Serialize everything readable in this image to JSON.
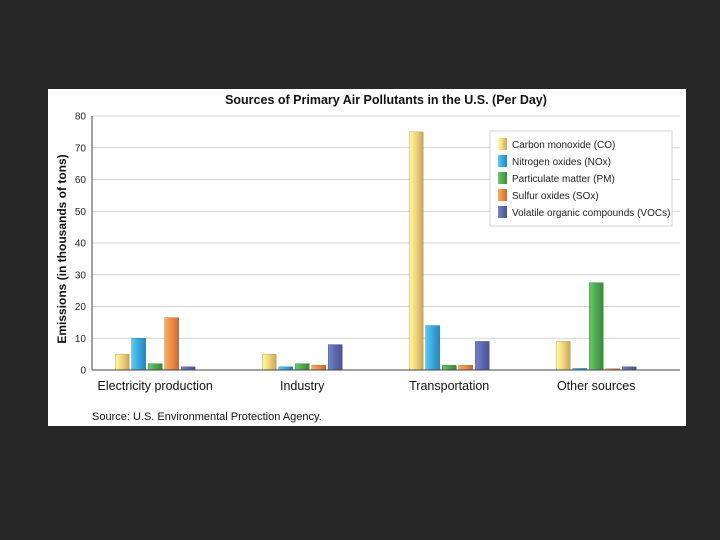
{
  "chart_data": {
    "type": "bar",
    "title": "Sources of Primary Air Pollutants in the U.S. (Per Day)",
    "ylabel": "Emissions (in thousands of tons)",
    "xlabel": "",
    "ylim": [
      0,
      80
    ],
    "yticks": [
      0,
      10,
      20,
      30,
      40,
      50,
      60,
      70,
      80
    ],
    "categories": [
      "Electricity production",
      "Industry",
      "Transportation",
      "Other sources"
    ],
    "series": [
      {
        "name": "Carbon monoxide (CO)",
        "color": "#f3d27a",
        "values": [
          5,
          5,
          75,
          9
        ]
      },
      {
        "name": "Nitrogen oxides (NOx)",
        "color": "#3aa6dd",
        "values": [
          10,
          1,
          14,
          0.5
        ]
      },
      {
        "name": "Particulate matter (PM)",
        "color": "#4fa84f",
        "values": [
          2,
          2,
          1.5,
          27.5
        ]
      },
      {
        "name": "Sulfur oxides (SOx)",
        "color": "#ee8a45",
        "values": [
          16.5,
          1.5,
          1.5,
          0
        ]
      },
      {
        "name": "Volatile organic compounds (VOCs)",
        "color": "#5c68ad",
        "values": [
          1,
          8,
          9,
          1
        ]
      }
    ],
    "grid": true,
    "legend_position": "top-right",
    "source": "Source: U.S. Environmental Protection Agency."
  }
}
